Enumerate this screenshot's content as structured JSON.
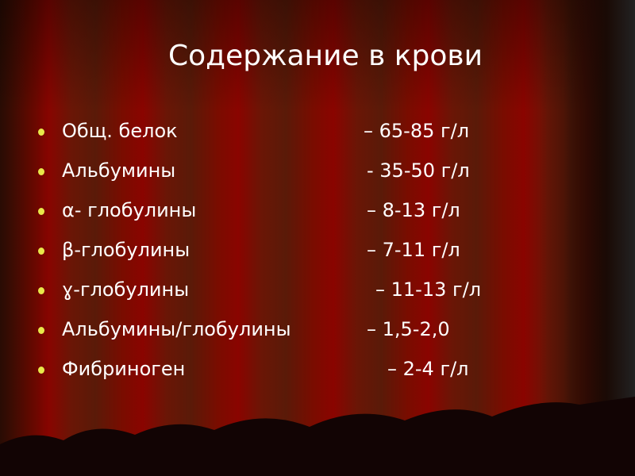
{
  "title": "Содержание в крови",
  "items": [
    {
      "label": "Общ. белок",
      "value": "– 65-85 г/л"
    },
    {
      "label": "Альбумины",
      "value": "- 35-50 г/л"
    },
    {
      "label": "α- глобулины",
      "value": "– 8-13 г/л"
    },
    {
      "label": "β-глобулины",
      "value": "– 7-11 г/л"
    },
    {
      "label": "ɣ-глобулины",
      "value": "– 11-13 г/л"
    },
    {
      "label": "Альбумины/глобулины",
      "value": "– 1,5-2,0"
    },
    {
      "label": "Фибриноген",
      "value": "– 2-4 г/л"
    }
  ],
  "colors": {
    "background": "#7a0c00",
    "bullet": "#e8e84a",
    "text": "#ffffff"
  }
}
